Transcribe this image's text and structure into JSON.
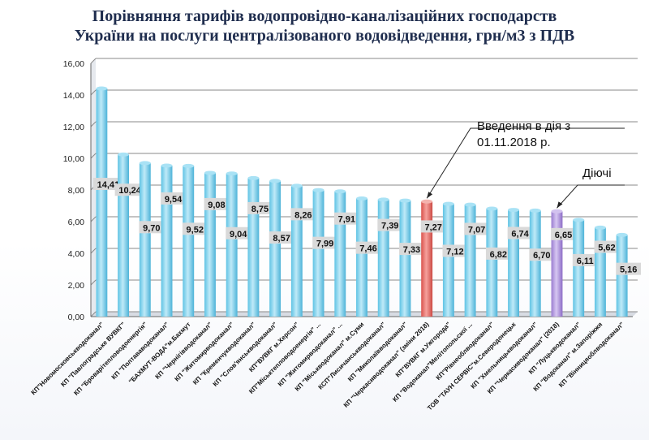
{
  "title_line1": "Порівняння тарифів водопровідно-каналізаційних господарств",
  "title_line2": "України на послуги централізованого водовідведення, грн/м3 з ПДВ",
  "annotations": {
    "introduction_line1": "Введення в дія з",
    "introduction_line2": "01.11.2018 р.",
    "current": "Діючі"
  },
  "colors": {
    "bar": "#7fd3ee",
    "bar_new": "#f08a84",
    "bar_current": "#b9a0e0",
    "label_box": "#d9d9d9"
  },
  "chart_data": {
    "type": "bar",
    "title": "Порівняння тарифів водопровідно-каналізаційних господарств України на послуги централізованого водовідведення, грн/м3 з ПДВ",
    "ylim": [
      0,
      16
    ],
    "yticks": [
      "0,00",
      "2,00",
      "4,00",
      "6,00",
      "8,00",
      "10,00",
      "12,00",
      "14,00",
      "16,00"
    ],
    "grid": true,
    "categories": [
      "КП\"Новомосковськводоканал\"",
      "КП \"Павлоградське ВУВКГ\"",
      "КП \"Броварітепловодоенергія\"",
      "КП \"Полтававодоканал\"",
      "\"БАХМУТ-ВОДА\"м.Бахмут",
      "КП \"Чернігівводоканал\"",
      "КП \"Житомирводоканал\"",
      "КП \"Кременчукводоканал\"",
      "КП \"Слов'янськводоканал\"",
      "КП\"ВУВКГ м.Херсон\"",
      "КП\"Міськтепловодоенергія\" ...",
      "КП \"Житомирводоканал\" ...",
      "КП \"Міськводоканал\" м.Суми",
      "КСП\"Лисичанськводоканал\"",
      "КП \"Миколаївводоканал\"",
      "КП \"Черкасиводоканал\" (зміни 2018)",
      "КП\"ВУВКГ м.Ужгорода\"",
      "КП \"Водоканал\"Мелітопольскої ...",
      "КП\"Рівнеоблводоканал\"",
      "ТОВ \"ТАУН СЕРВІС\"м.Северодонецьк",
      "КП \"Хмельницькводоканал\"",
      "КП \"Черкасиводоканал\" (2018)",
      "КП \"Луцькводоканал\"",
      "КП \"Водоканал\" м.Запоріжжя",
      "КП \"Вінницяоблводоканал\""
    ],
    "values": [
      14.41,
      10.24,
      9.7,
      9.54,
      9.52,
      9.08,
      9.04,
      8.75,
      8.57,
      8.26,
      7.99,
      7.91,
      7.46,
      7.39,
      7.33,
      7.27,
      7.12,
      7.07,
      6.82,
      6.74,
      6.7,
      6.65,
      6.11,
      5.62,
      5.16
    ],
    "value_labels": [
      "14,41",
      "10,24",
      "9,70",
      "9,54",
      "9,52",
      "9,08",
      "9,04",
      "8,75",
      "8,57",
      "8,26",
      "7,99",
      "7,91",
      "7,46",
      "7,39",
      "7,33",
      "7,27",
      "7,12",
      "7,07",
      "6,82",
      "6,74",
      "6,70",
      "6,65",
      "6,11",
      "5,62",
      "5,16"
    ],
    "highlight": {
      "new": 15,
      "current": 21
    }
  }
}
